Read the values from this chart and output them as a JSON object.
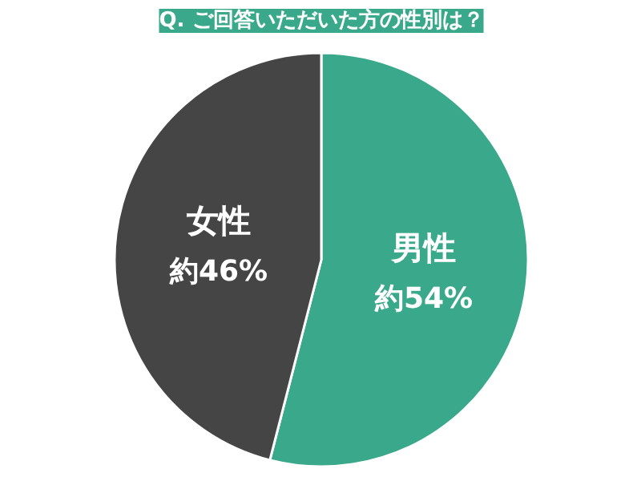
{
  "chart_data": {
    "type": "pie",
    "title": "Q. ご回答いただいた方の性別は？",
    "categories": [
      "男性",
      "女性"
    ],
    "values": [
      54,
      46
    ],
    "colors": [
      "#3aa88a",
      "#454545"
    ],
    "value_labels": [
      "約54%",
      "約46%"
    ],
    "legend": false
  }
}
